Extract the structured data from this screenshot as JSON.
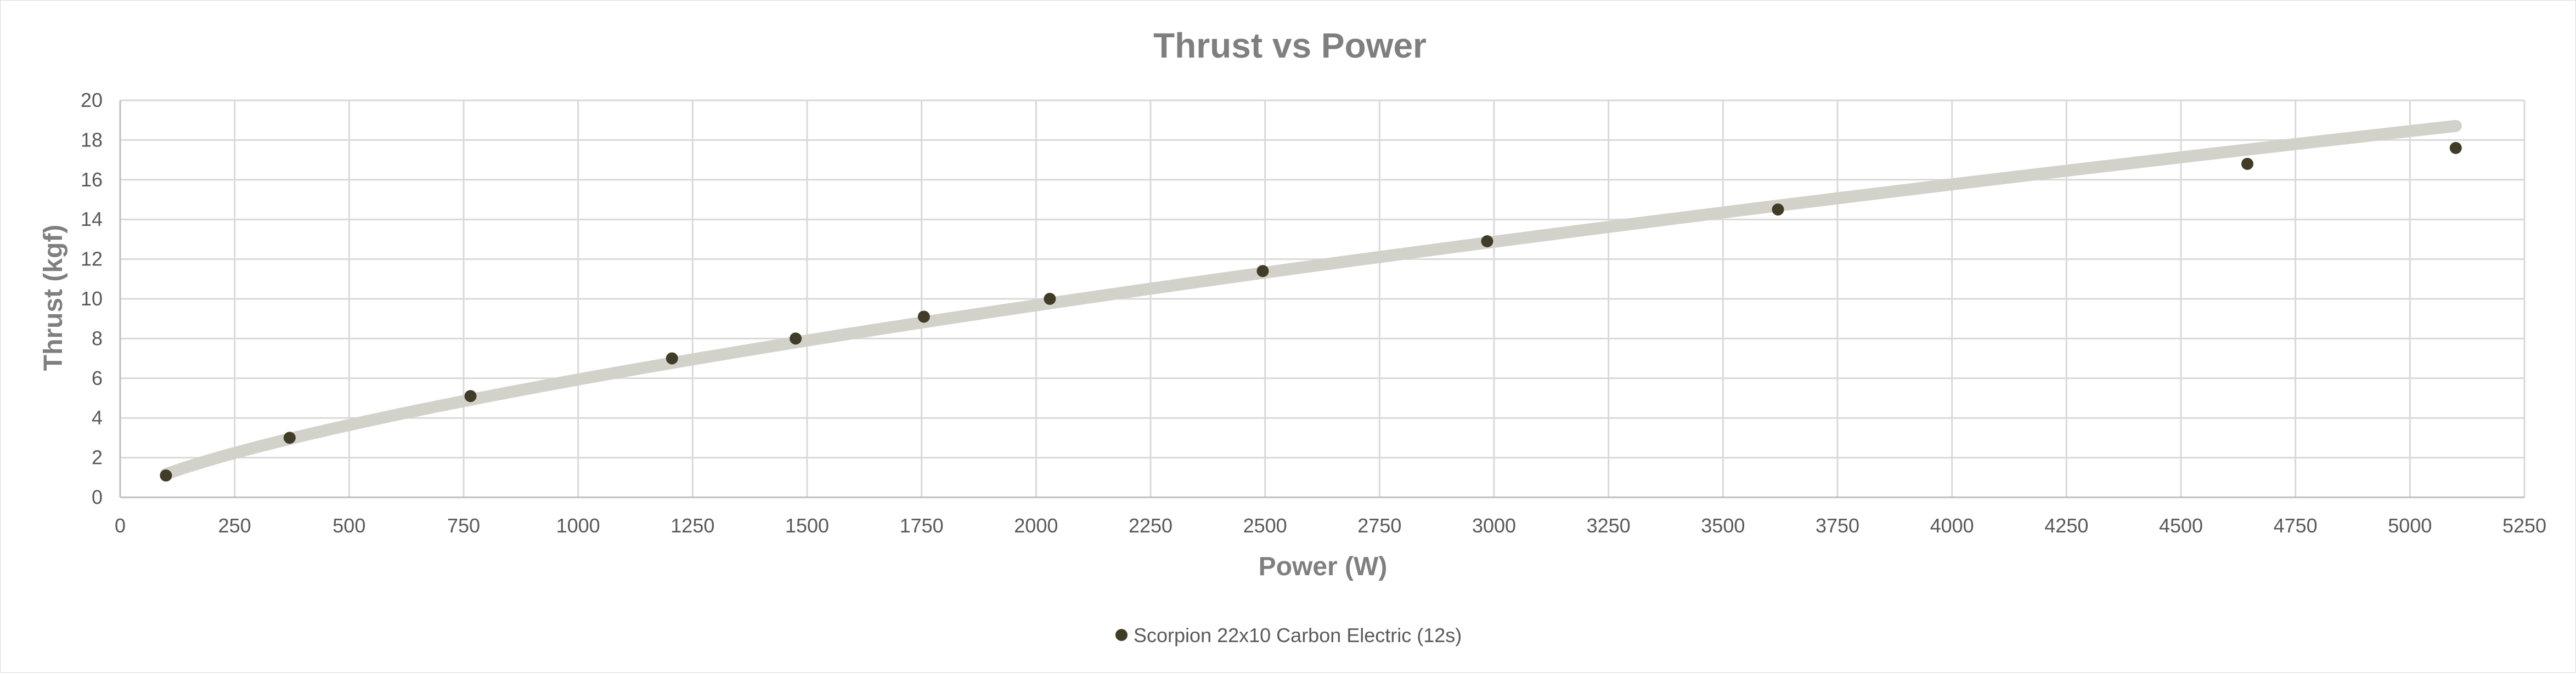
{
  "chart_data": {
    "type": "scatter",
    "title": "Thrust vs Power",
    "xlabel": "Power (W)",
    "ylabel": "Thrust (kgf)",
    "xlim": [
      0,
      5250
    ],
    "ylim": [
      0,
      20
    ],
    "x_ticks": [
      "0",
      "250",
      "500",
      "750",
      "1000",
      "1250",
      "1500",
      "1750",
      "2000",
      "2250",
      "2500",
      "2750",
      "3000",
      "3250",
      "3500",
      "3750",
      "4000",
      "4250",
      "4500",
      "4750",
      "5000",
      "5250"
    ],
    "y_ticks": [
      "0",
      "2",
      "4",
      "6",
      "8",
      "10",
      "12",
      "14",
      "16",
      "18",
      "20"
    ],
    "grid": true,
    "legend_position": "bottom",
    "trendline": true,
    "series": [
      {
        "name": "Scorpion 22x10 Carbon Electric (12s)",
        "x": [
          100,
          370,
          765,
          1205,
          1475,
          1755,
          2030,
          2495,
          2985,
          3620,
          4645,
          5100
        ],
        "y": [
          1.1,
          3.0,
          5.1,
          7.0,
          8.0,
          9.1,
          10.0,
          11.4,
          12.9,
          14.5,
          16.8,
          17.6
        ]
      }
    ],
    "colors": {
      "marker": "#403c28",
      "trendline": "#d3d2ca",
      "grid": "#d9d9d9",
      "title": "#7f7f7f",
      "tick_text": "#595959"
    }
  }
}
